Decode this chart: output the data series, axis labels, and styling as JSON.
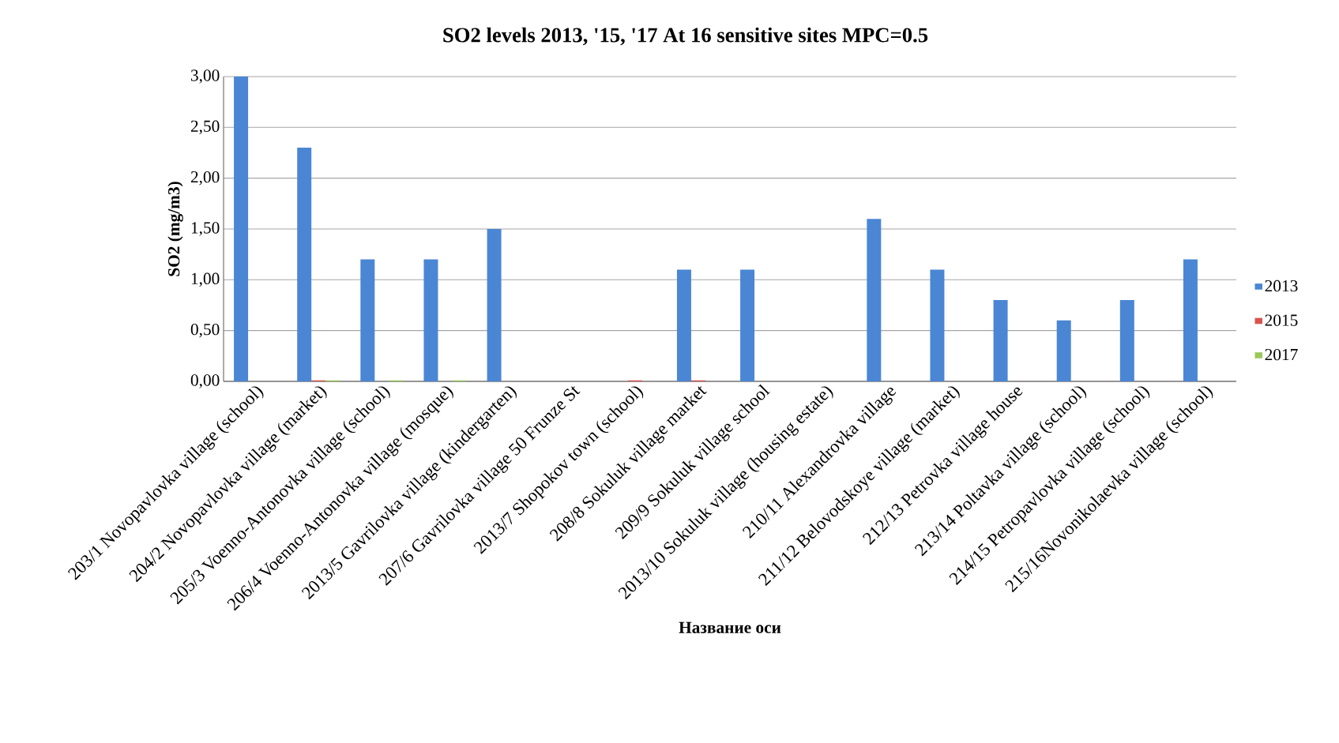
{
  "chart_data": {
    "type": "bar",
    "title": "SO2 levels 2013, '15, '17 At 16 sensitive sites MPC=0.5",
    "xlabel": "Название оси",
    "ylabel": "SO2 (mg/m3)",
    "categories": [
      "203/1 Novopavlovka village (school)",
      "204/2 Novopavlovka village (market)",
      "205/3 Voenno-Antonovka village (school)",
      "206/4 Voenno-Antonovka village (mosque)",
      "2013/5 Gavrilovka village (kindergarten)",
      "207/6 Gavrilovka village 50 Frunze St",
      "2013/7 Shopokov town (school)",
      "208/8 Sokuluk village market",
      "209/9 Sokuluk village school",
      "2013/10 Sokuluk village (housing estate)",
      "210/11 Alexandrovka village",
      "211/12 Belovodskoye village (market)",
      "212/13 Petrovka village house",
      "213/14 Poltavka village (school)",
      "214/15 Petropavlovka village (school)",
      "215/16Novonikolaevka village (school)"
    ],
    "series": [
      {
        "name": "2013",
        "color": "#4a86d4",
        "values": [
          3.0,
          2.3,
          1.2,
          1.2,
          1.5,
          null,
          null,
          1.1,
          1.1,
          null,
          1.6,
          1.1,
          0.8,
          0.6,
          0.8,
          1.2
        ]
      },
      {
        "name": "2015",
        "color": "#d9534f",
        "values": [
          null,
          0.01,
          null,
          null,
          null,
          null,
          0.01,
          0.01,
          null,
          null,
          null,
          null,
          null,
          null,
          null,
          null
        ]
      },
      {
        "name": "2017",
        "color": "#9bc85a",
        "values": [
          null,
          0.01,
          0.01,
          0.01,
          null,
          null,
          null,
          null,
          null,
          null,
          null,
          null,
          null,
          null,
          null,
          null
        ]
      }
    ],
    "ylim": [
      0,
      3
    ],
    "yticks": [
      {
        "value": 0,
        "label": "0,00"
      },
      {
        "value": 0.5,
        "label": "0,50"
      },
      {
        "value": 1,
        "label": "1,00"
      },
      {
        "value": 1.5,
        "label": "1,50"
      },
      {
        "value": 2,
        "label": "2,00"
      },
      {
        "value": 2.5,
        "label": "2,50"
      },
      {
        "value": 3,
        "label": "3,00"
      }
    ],
    "grid": "y",
    "legend": "right"
  }
}
